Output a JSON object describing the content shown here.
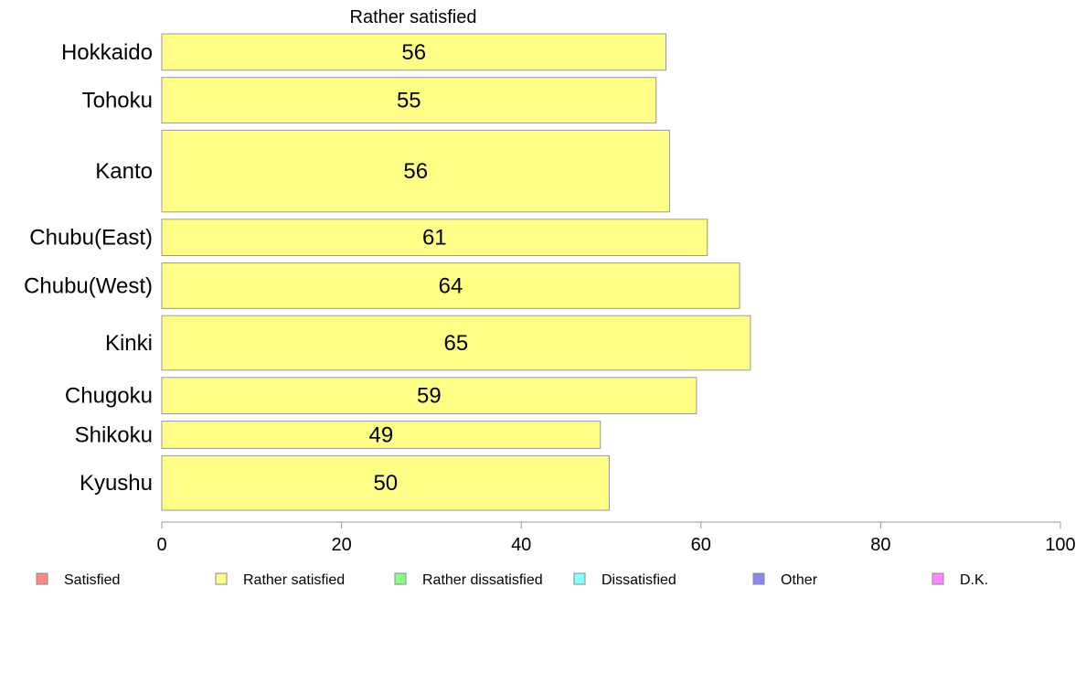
{
  "chart_data": {
    "type": "bar",
    "orientation": "horizontal",
    "title": "Rather satisfied",
    "categories": [
      "Hokkaido",
      "Tohoku",
      "Kanto",
      "Chubu(East)",
      "Chubu(West)",
      "Kinki",
      "Chugoku",
      "Shikoku",
      "Kyushu"
    ],
    "values": [
      56,
      55,
      56,
      61,
      64,
      65,
      59,
      49,
      50
    ],
    "bar_values": [
      56.1,
      55.0,
      56.5,
      60.7,
      64.3,
      65.5,
      59.5,
      48.8,
      49.8
    ],
    "relative_bar_thickness": [
      4,
      5,
      9,
      4,
      5,
      6,
      4,
      3,
      6
    ],
    "xlim": [
      0,
      100
    ],
    "xticks": [
      "0",
      "20",
      "40",
      "60",
      "80",
      "100"
    ],
    "bar_color": "#ffff88",
    "bar_edge_color": "#999999",
    "legend_position": "bottom",
    "legend": [
      {
        "label": "Satisfied",
        "color": "#ff8888"
      },
      {
        "label": "Rather satisfied",
        "color": "#ffff88"
      },
      {
        "label": "Rather dissatisfied",
        "color": "#88ff88"
      },
      {
        "label": "Dissatisfied",
        "color": "#88ffff"
      },
      {
        "label": "Other",
        "color": "#8888ee"
      },
      {
        "label": "D.K.",
        "color": "#ff88ff"
      }
    ]
  }
}
